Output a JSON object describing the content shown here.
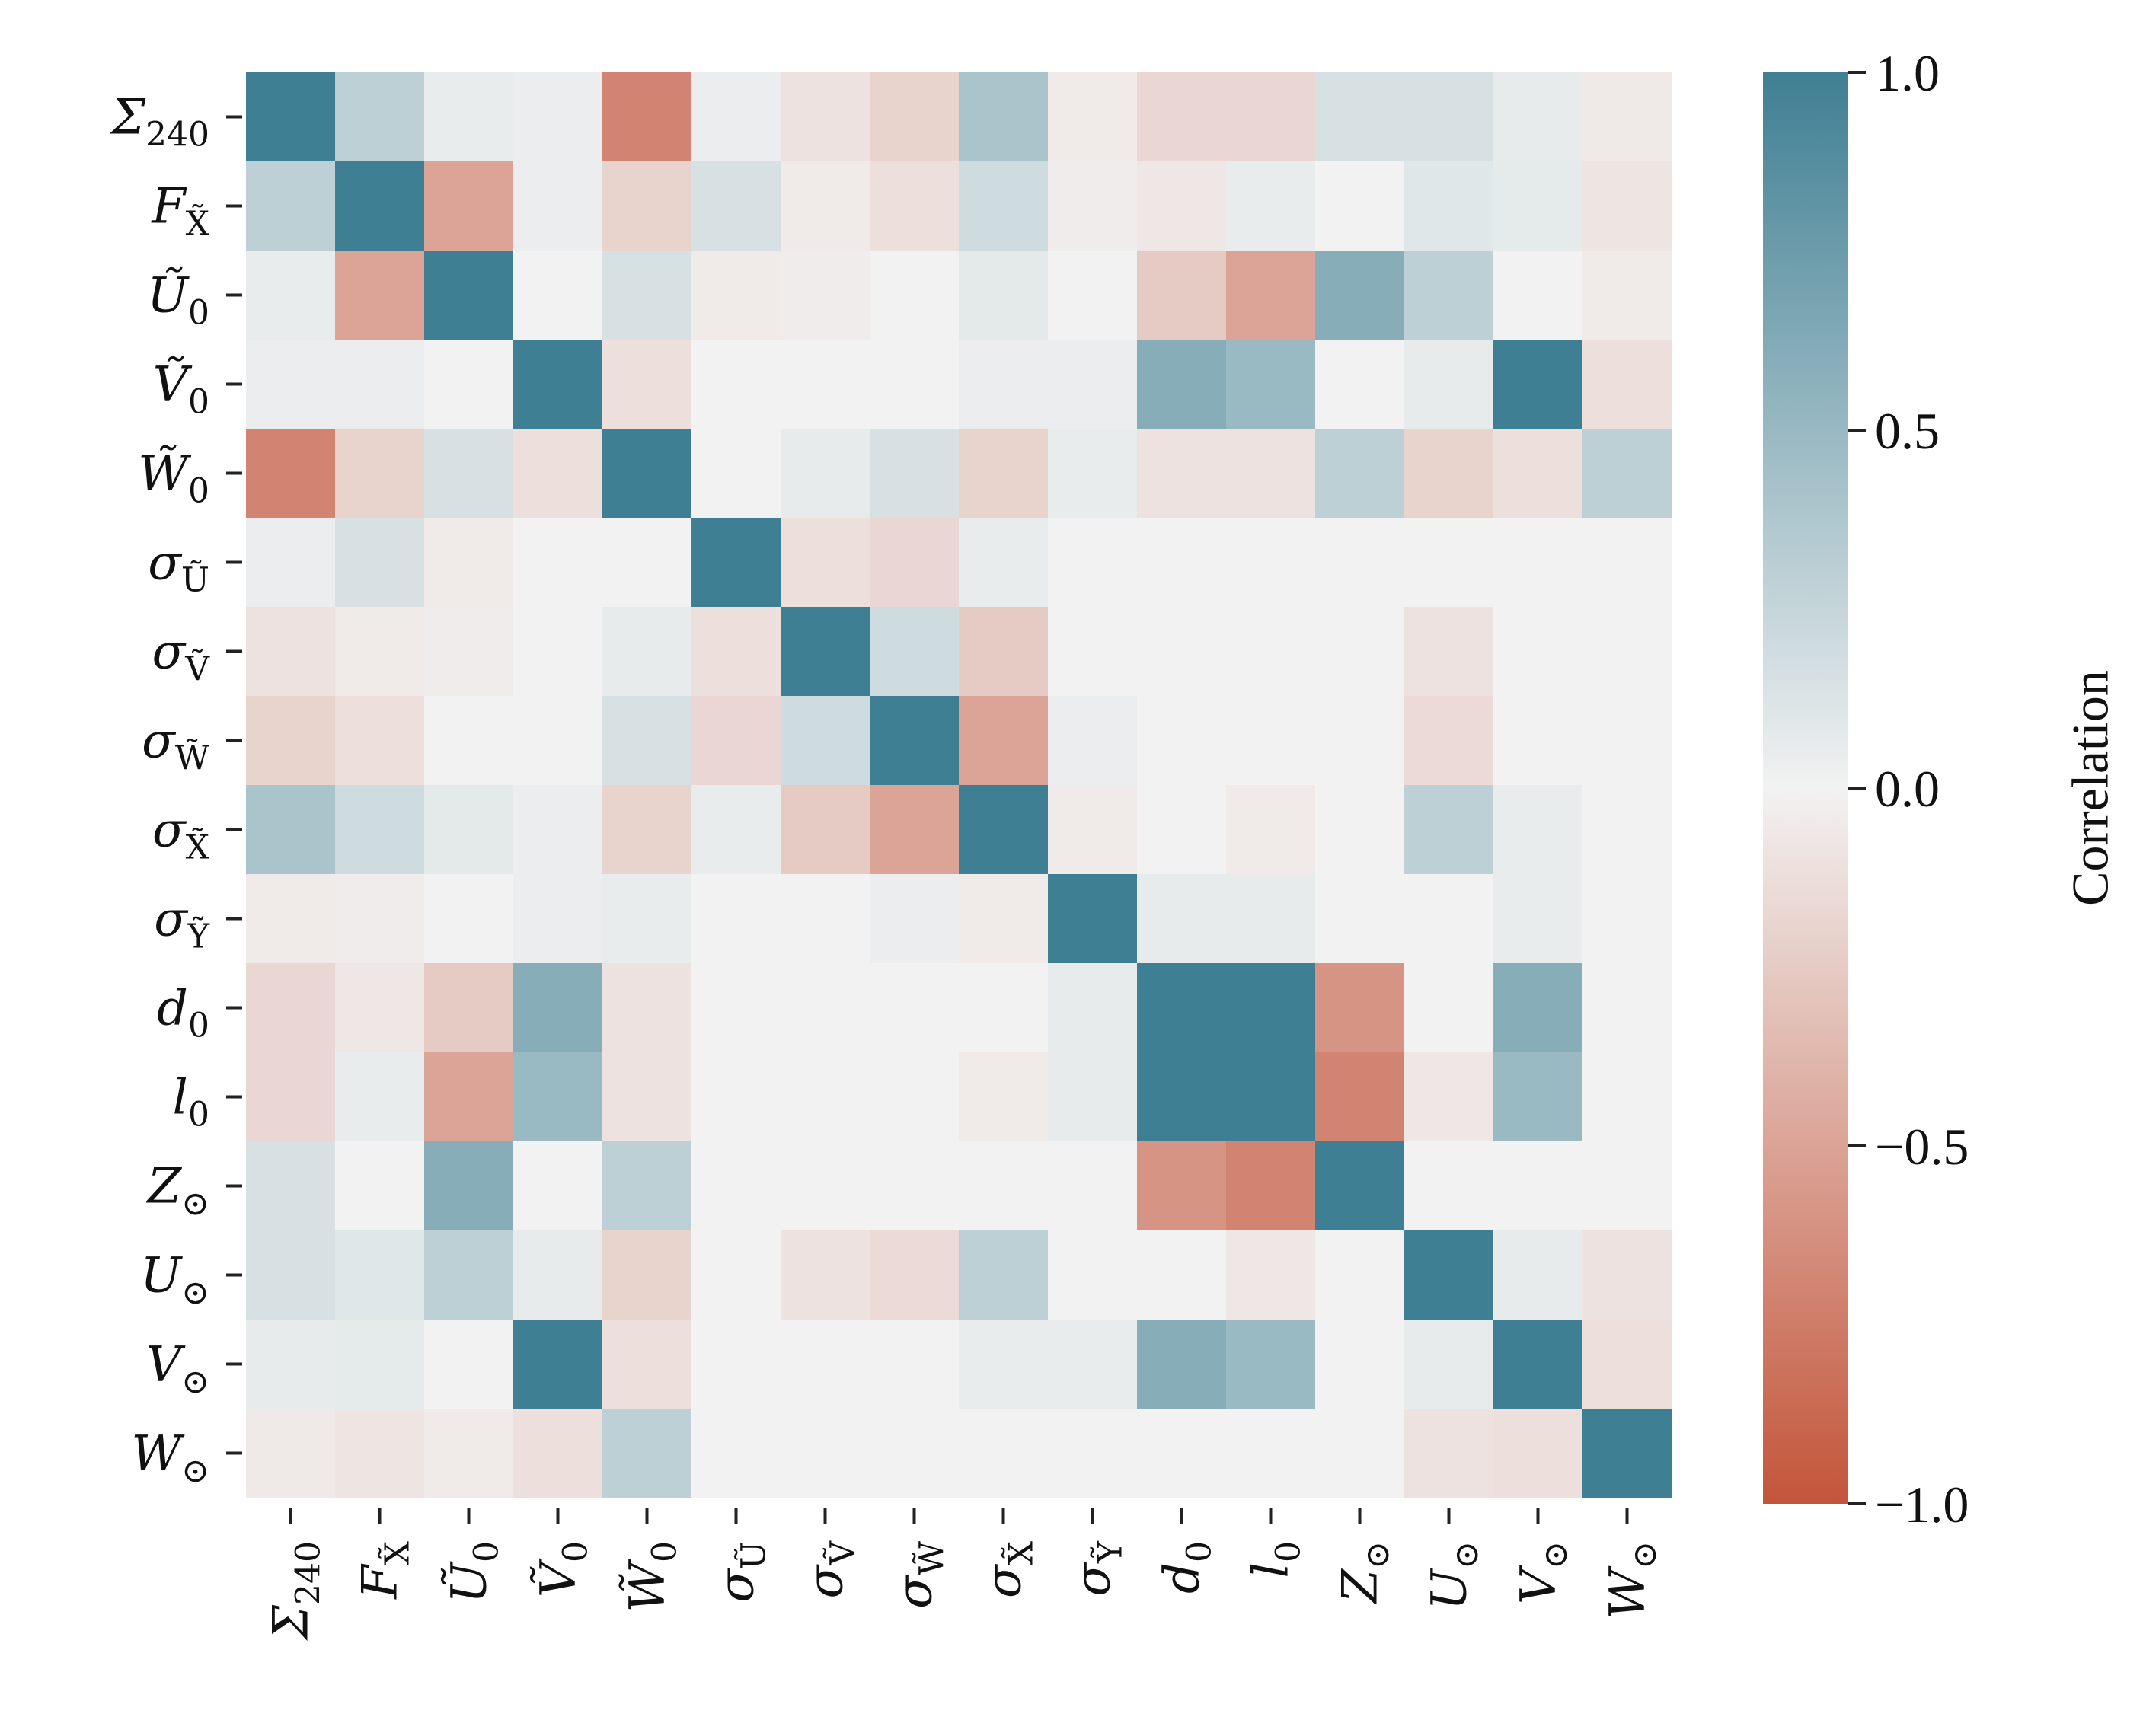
{
  "chart_data": {
    "type": "heatmap",
    "labels": [
      "Σ240",
      "FX̃",
      "Ũ0",
      "Ṽ0",
      "W̃0",
      "σŨ",
      "σṼ",
      "σW̃",
      "σX̃",
      "σỸ",
      "d0",
      "l0",
      "Z⊙",
      "U⊙",
      "V⊙",
      "W⊙"
    ],
    "label_parts": [
      {
        "base": "Σ",
        "sub": "240"
      },
      {
        "base": "F",
        "sub": "X̃"
      },
      {
        "base": "Ũ",
        "sub": "0"
      },
      {
        "base": "Ṽ",
        "sub": "0"
      },
      {
        "base": "W̃",
        "sub": "0"
      },
      {
        "base": "σ",
        "sub": "Ũ"
      },
      {
        "base": "σ",
        "sub": "Ṽ"
      },
      {
        "base": "σ",
        "sub": "W̃"
      },
      {
        "base": "σ",
        "sub": "X̃"
      },
      {
        "base": "σ",
        "sub": "Ỹ"
      },
      {
        "base": "d",
        "sub": "0"
      },
      {
        "base": "l",
        "sub": "0"
      },
      {
        "base": "Z",
        "sub": "⊙"
      },
      {
        "base": "U",
        "sub": "⊙"
      },
      {
        "base": "V",
        "sub": "⊙"
      },
      {
        "base": "W",
        "sub": "⊙"
      }
    ],
    "matrix": [
      [
        1.0,
        0.3,
        0.05,
        0.04,
        -0.7,
        0.04,
        -0.1,
        -0.2,
        0.4,
        -0.05,
        -0.17,
        -0.17,
        0.15,
        0.15,
        0.06,
        -0.06
      ],
      [
        0.3,
        1.0,
        -0.5,
        0.04,
        -0.2,
        0.15,
        -0.05,
        -0.12,
        0.2,
        -0.04,
        -0.07,
        0.05,
        0.0,
        0.1,
        0.07,
        -0.08
      ],
      [
        0.05,
        -0.5,
        1.0,
        0.0,
        0.15,
        -0.05,
        -0.04,
        0.0,
        0.08,
        0.0,
        -0.25,
        -0.5,
        0.6,
        0.3,
        0.0,
        -0.05
      ],
      [
        0.04,
        0.04,
        0.0,
        1.0,
        -0.12,
        0.0,
        0.0,
        0.0,
        0.04,
        0.04,
        0.6,
        0.5,
        0.0,
        0.06,
        1.0,
        -0.12
      ],
      [
        -0.7,
        -0.2,
        0.15,
        -0.12,
        1.0,
        0.0,
        0.06,
        0.15,
        -0.2,
        0.05,
        -0.1,
        -0.1,
        0.3,
        -0.2,
        -0.12,
        0.3
      ],
      [
        0.04,
        0.15,
        -0.05,
        0.0,
        0.0,
        1.0,
        -0.12,
        -0.17,
        0.05,
        0.0,
        0.0,
        0.0,
        0.0,
        0.0,
        0.0,
        0.0
      ],
      [
        -0.1,
        -0.05,
        -0.04,
        0.0,
        0.06,
        -0.12,
        1.0,
        0.2,
        -0.25,
        0.0,
        0.0,
        0.0,
        0.0,
        -0.1,
        0.0,
        0.0
      ],
      [
        -0.2,
        -0.12,
        0.0,
        0.0,
        0.15,
        -0.17,
        0.2,
        1.0,
        -0.5,
        0.04,
        0.0,
        0.0,
        0.0,
        -0.15,
        0.0,
        0.0
      ],
      [
        0.4,
        0.2,
        0.08,
        0.04,
        -0.2,
        0.05,
        -0.25,
        -0.5,
        1.0,
        -0.05,
        0.0,
        -0.05,
        0.0,
        0.3,
        0.05,
        0.0
      ],
      [
        -0.05,
        -0.04,
        0.0,
        0.04,
        0.05,
        0.0,
        0.0,
        0.04,
        -0.05,
        1.0,
        0.06,
        0.06,
        0.0,
        0.0,
        0.05,
        0.0
      ],
      [
        -0.17,
        -0.07,
        -0.25,
        0.6,
        -0.1,
        0.0,
        0.0,
        0.0,
        0.0,
        0.06,
        1.0,
        1.0,
        -0.6,
        0.0,
        0.6,
        0.0
      ],
      [
        -0.17,
        0.05,
        -0.5,
        0.5,
        -0.1,
        0.0,
        0.0,
        0.0,
        -0.05,
        0.06,
        1.0,
        1.0,
        -0.7,
        -0.07,
        0.5,
        0.0
      ],
      [
        0.15,
        0.0,
        0.6,
        0.0,
        0.3,
        0.0,
        0.0,
        0.0,
        0.0,
        0.0,
        -0.6,
        -0.7,
        1.0,
        0.0,
        0.0,
        0.0
      ],
      [
        0.15,
        0.1,
        0.3,
        0.06,
        -0.2,
        0.0,
        -0.1,
        -0.15,
        0.3,
        0.0,
        0.0,
        -0.07,
        0.0,
        1.0,
        0.06,
        -0.1
      ],
      [
        0.06,
        0.07,
        0.0,
        1.0,
        -0.12,
        0.0,
        0.0,
        0.0,
        0.05,
        0.05,
        0.6,
        0.5,
        0.0,
        0.06,
        1.0,
        -0.12
      ],
      [
        -0.06,
        -0.08,
        -0.05,
        -0.12,
        0.3,
        0.0,
        0.0,
        0.0,
        0.0,
        0.0,
        0.0,
        0.0,
        0.0,
        -0.1,
        -0.12,
        1.0
      ]
    ],
    "colorbar": {
      "label": "Correlation",
      "range": [
        -1.0,
        1.0
      ],
      "ticks": [
        1.0,
        0.5,
        0.0,
        -0.5,
        -1.0
      ],
      "tick_labels": [
        "1.0",
        "0.5",
        "0.0",
        "−0.5",
        "−1.0"
      ]
    },
    "colors": {
      "positive": "#3f7f93",
      "neutral": "#f2f2f2",
      "negative": "#c3553a"
    }
  }
}
